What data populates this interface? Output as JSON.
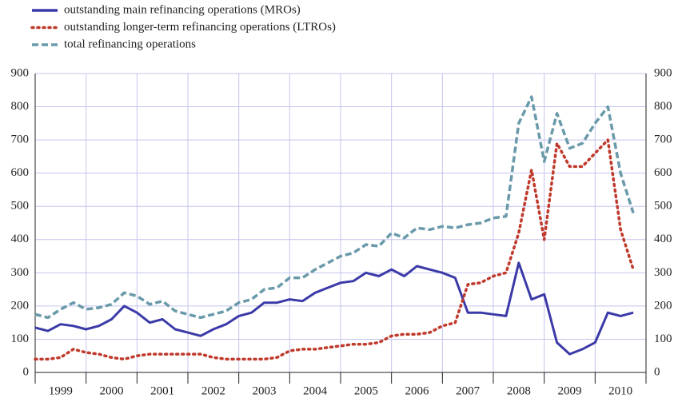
{
  "chart_data": {
    "type": "line",
    "categories": [
      "1999",
      "2000",
      "2001",
      "2002",
      "2003",
      "2004",
      "2005",
      "2006",
      "2007",
      "2008",
      "2009",
      "2010"
    ],
    "x": [
      1999.0,
      1999.25,
      1999.5,
      1999.75,
      2000.0,
      2000.25,
      2000.5,
      2000.75,
      2001.0,
      2001.25,
      2001.5,
      2001.75,
      2002.0,
      2002.25,
      2002.5,
      2002.75,
      2003.0,
      2003.25,
      2003.5,
      2003.75,
      2004.0,
      2004.25,
      2004.5,
      2004.75,
      2005.0,
      2005.25,
      2005.5,
      2005.75,
      2006.0,
      2006.25,
      2006.5,
      2006.75,
      2007.0,
      2007.25,
      2007.5,
      2007.75,
      2008.0,
      2008.25,
      2008.5,
      2008.75,
      2009.0,
      2009.25,
      2009.5,
      2009.75,
      2010.0,
      2010.25,
      2010.5,
      2010.75
    ],
    "xlim": [
      1999,
      2011
    ],
    "xticks": [
      1999,
      2000,
      2001,
      2002,
      2003,
      2004,
      2005,
      2006,
      2007,
      2008,
      2009,
      2010,
      2011
    ],
    "ylim": [
      0,
      900
    ],
    "yticks": [
      0,
      100,
      200,
      300,
      400,
      500,
      600,
      700,
      800,
      900
    ],
    "y2lim": [
      0,
      900
    ],
    "y2ticks": [
      0,
      100,
      200,
      300,
      400,
      500,
      600,
      700,
      800,
      900
    ],
    "grid": true,
    "legend": "top-left",
    "series": [
      {
        "name": "outstanding main refinancing operations (MROs)",
        "color": "#3b3aa8",
        "style": "solid",
        "values": [
          135,
          125,
          145,
          140,
          130,
          140,
          160,
          200,
          180,
          150,
          160,
          130,
          120,
          110,
          130,
          145,
          170,
          180,
          210,
          210,
          220,
          215,
          240,
          255,
          270,
          275,
          300,
          290,
          310,
          290,
          320,
          310,
          300,
          285,
          180,
          180,
          175,
          170,
          330,
          220,
          235,
          90,
          55,
          70,
          90,
          180,
          170,
          180
        ]
      },
      {
        "name": "outstanding longer-term refinancing operations (LTROs)",
        "color": "#c0392b",
        "style": "dotted",
        "values": [
          40,
          40,
          45,
          70,
          60,
          55,
          45,
          40,
          50,
          55,
          55,
          55,
          55,
          55,
          45,
          40,
          40,
          40,
          40,
          45,
          65,
          70,
          70,
          75,
          80,
          85,
          85,
          90,
          110,
          115,
          115,
          120,
          140,
          150,
          265,
          270,
          290,
          300,
          420,
          610,
          400,
          690,
          620,
          620,
          660,
          700,
          430,
          310
        ]
      },
      {
        "name": "total refinancing operations",
        "color": "#6a9aaa",
        "style": "dashed",
        "values": [
          175,
          165,
          190,
          210,
          190,
          195,
          205,
          240,
          230,
          205,
          215,
          185,
          175,
          165,
          175,
          185,
          210,
          220,
          250,
          255,
          285,
          285,
          310,
          330,
          350,
          360,
          385,
          380,
          420,
          405,
          435,
          430,
          440,
          435,
          445,
          450,
          465,
          470,
          750,
          830,
          635,
          780,
          675,
          690,
          750,
          800,
          600,
          480
        ]
      }
    ]
  }
}
